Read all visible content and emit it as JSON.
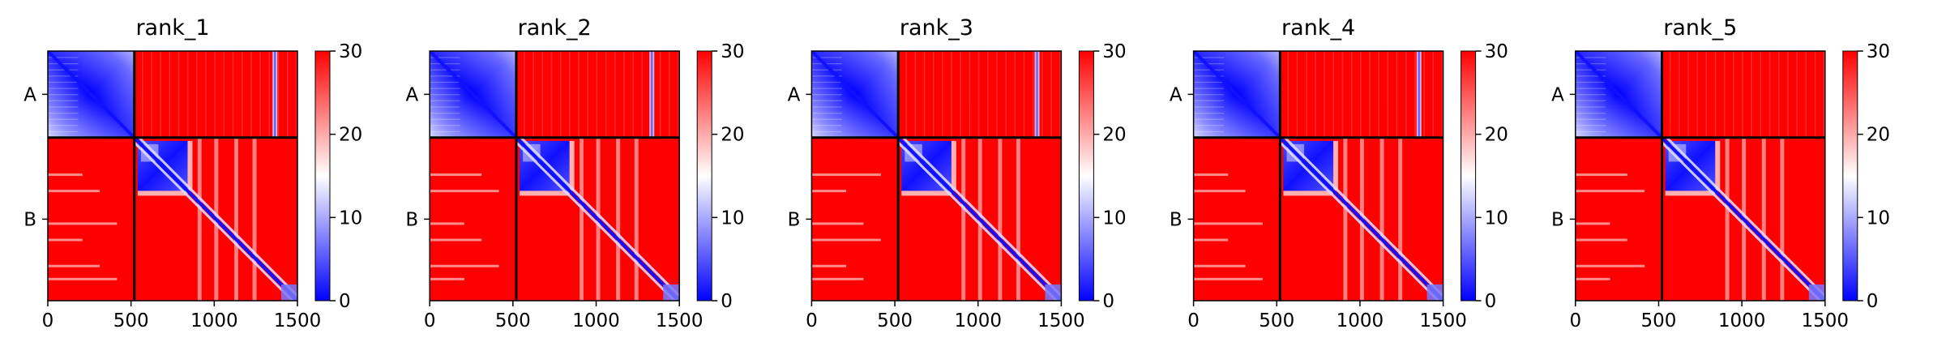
{
  "figure": {
    "panels": [
      "rank_1",
      "rank_2",
      "rank_3",
      "rank_4",
      "rank_5"
    ]
  },
  "chart_data": [
    {
      "type": "heatmap",
      "title": "rank_1",
      "xlabel": "",
      "ylabel": "",
      "x_ticks": [
        0,
        500,
        1000,
        1500
      ],
      "y_ticks": [
        "A",
        "B"
      ],
      "xlim": [
        0,
        1500
      ],
      "chains": [
        {
          "name": "A",
          "length": 520
        },
        {
          "name": "B",
          "length": 980
        }
      ],
      "colorbar": {
        "min": 0,
        "max": 30,
        "ticks": [
          0,
          10,
          20,
          30
        ],
        "colormap": "bwr",
        "low_color": "#0000ff",
        "mid_color": "#ffffff",
        "high_color": "#ff0000"
      },
      "regions": [
        {
          "block": "A-A",
          "value": 4,
          "note": "low PAE, blue"
        },
        {
          "block": "A-B",
          "value": 30,
          "note": "high PAE, red"
        },
        {
          "block": "B-A",
          "value": 30,
          "note": "high PAE, red"
        },
        {
          "block": "B-B domain 540-840",
          "value": 5,
          "note": "blue square"
        },
        {
          "block": "B-B diagonal",
          "value": 1,
          "note": "blue diagonal"
        },
        {
          "block": "B-B off-diagonal",
          "value": 30,
          "note": "red"
        }
      ],
      "bands_col": [
        1350
      ]
    },
    {
      "type": "heatmap",
      "title": "rank_2",
      "xlabel": "",
      "ylabel": "",
      "x_ticks": [
        0,
        500,
        1000,
        1500
      ],
      "y_ticks": [
        "A",
        "B"
      ],
      "xlim": [
        0,
        1500
      ],
      "chains": [
        {
          "name": "A",
          "length": 520
        },
        {
          "name": "B",
          "length": 980
        }
      ],
      "colorbar": {
        "min": 0,
        "max": 30,
        "ticks": [
          0,
          10,
          20,
          30
        ],
        "colormap": "bwr",
        "low_color": "#0000ff",
        "mid_color": "#ffffff",
        "high_color": "#ff0000"
      },
      "regions": [
        {
          "block": "A-A",
          "value": 4,
          "note": "low PAE, blue"
        },
        {
          "block": "A-B",
          "value": 30,
          "note": "high PAE, red"
        },
        {
          "block": "B-A",
          "value": 30,
          "note": "high PAE, red"
        },
        {
          "block": "B-B domain 540-840",
          "value": 5,
          "note": "blue square"
        },
        {
          "block": "B-B diagonal",
          "value": 1,
          "note": "blue diagonal"
        },
        {
          "block": "B-B off-diagonal",
          "value": 30,
          "note": "red"
        }
      ],
      "bands_col": [
        1320
      ]
    },
    {
      "type": "heatmap",
      "title": "rank_3",
      "xlabel": "",
      "ylabel": "",
      "x_ticks": [
        0,
        500,
        1000,
        1500
      ],
      "y_ticks": [
        "A",
        "B"
      ],
      "xlim": [
        0,
        1500
      ],
      "chains": [
        {
          "name": "A",
          "length": 520
        },
        {
          "name": "B",
          "length": 980
        }
      ],
      "colorbar": {
        "min": 0,
        "max": 30,
        "ticks": [
          0,
          10,
          20,
          30
        ],
        "colormap": "bwr",
        "low_color": "#0000ff",
        "mid_color": "#ffffff",
        "high_color": "#ff0000"
      },
      "regions": [
        {
          "block": "A-A",
          "value": 4,
          "note": "low PAE, blue"
        },
        {
          "block": "A-B",
          "value": 30,
          "note": "high PAE, red"
        },
        {
          "block": "B-A",
          "value": 30,
          "note": "high PAE, red"
        },
        {
          "block": "B-B domain 540-840",
          "value": 5,
          "note": "blue square"
        },
        {
          "block": "B-B diagonal",
          "value": 1,
          "note": "blue diagonal"
        },
        {
          "block": "B-B off-diagonal",
          "value": 30,
          "note": "red"
        }
      ],
      "bands_col": [
        1340
      ]
    },
    {
      "type": "heatmap",
      "title": "rank_4",
      "xlabel": "",
      "ylabel": "",
      "x_ticks": [
        0,
        500,
        1000,
        1500
      ],
      "y_ticks": [
        "A",
        "B"
      ],
      "xlim": [
        0,
        1500
      ],
      "chains": [
        {
          "name": "A",
          "length": 520
        },
        {
          "name": "B",
          "length": 980
        }
      ],
      "colorbar": {
        "min": 0,
        "max": 30,
        "ticks": [
          0,
          10,
          20,
          30
        ],
        "colormap": "bwr",
        "low_color": "#0000ff",
        "mid_color": "#ffffff",
        "high_color": "#ff0000"
      },
      "regions": [
        {
          "block": "A-A",
          "value": 4,
          "note": "low PAE, blue"
        },
        {
          "block": "A-B",
          "value": 30,
          "note": "high PAE, red"
        },
        {
          "block": "B-A",
          "value": 30,
          "note": "high PAE, red"
        },
        {
          "block": "B-B domain 540-840",
          "value": 5,
          "note": "blue square"
        },
        {
          "block": "B-B diagonal",
          "value": 1,
          "note": "blue diagonal"
        },
        {
          "block": "B-B off-diagonal",
          "value": 30,
          "note": "red"
        }
      ],
      "bands_col": [
        1340
      ]
    },
    {
      "type": "heatmap",
      "title": "rank_5",
      "xlabel": "",
      "ylabel": "",
      "x_ticks": [
        0,
        500,
        1000,
        1500
      ],
      "y_ticks": [
        "A",
        "B"
      ],
      "xlim": [
        0,
        1500
      ],
      "chains": [
        {
          "name": "A",
          "length": 520
        },
        {
          "name": "B",
          "length": 980
        }
      ],
      "colorbar": {
        "min": 0,
        "max": 30,
        "ticks": [
          0,
          10,
          20,
          30
        ],
        "colormap": "bwr",
        "low_color": "#0000ff",
        "mid_color": "#ffffff",
        "high_color": "#ff0000"
      },
      "regions": [
        {
          "block": "A-A",
          "value": 4,
          "note": "low PAE, blue"
        },
        {
          "block": "A-B",
          "value": 30,
          "note": "high PAE, red"
        },
        {
          "block": "B-A",
          "value": 30,
          "note": "high PAE, red"
        },
        {
          "block": "B-B domain 540-840",
          "value": 5,
          "note": "blue square"
        },
        {
          "block": "B-B diagonal",
          "value": 1,
          "note": "blue diagonal"
        },
        {
          "block": "B-B off-diagonal",
          "value": 30,
          "note": "red"
        }
      ],
      "bands_col": []
    }
  ]
}
